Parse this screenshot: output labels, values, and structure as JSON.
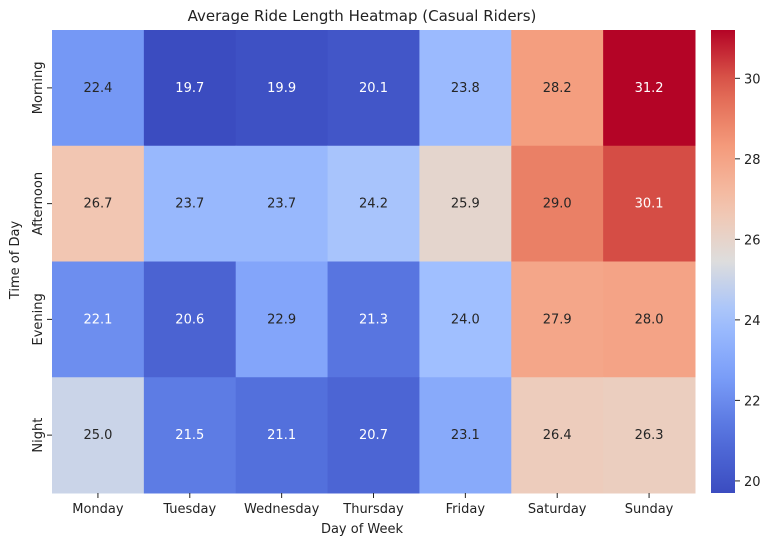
{
  "chart_data": {
    "type": "heatmap",
    "title": "Average Ride Length Heatmap (Casual Riders)",
    "xlabel": "Day of Week",
    "ylabel": "Time of Day",
    "x_categories": [
      "Monday",
      "Tuesday",
      "Wednesday",
      "Thursday",
      "Friday",
      "Saturday",
      "Sunday"
    ],
    "y_categories": [
      "Morning",
      "Afternoon",
      "Evening",
      "Night"
    ],
    "values": [
      [
        22.4,
        19.7,
        19.9,
        20.1,
        23.8,
        28.2,
        31.2
      ],
      [
        26.7,
        23.7,
        23.7,
        24.2,
        25.9,
        29.0,
        30.1
      ],
      [
        22.1,
        20.6,
        22.9,
        21.3,
        24.0,
        27.9,
        28.0
      ],
      [
        25.0,
        21.5,
        21.1,
        20.7,
        23.1,
        26.4,
        26.3
      ]
    ],
    "value_format": "0.0",
    "colormap": "coolwarm",
    "colorbar": {
      "range": [
        19.7,
        31.2
      ],
      "ticks": [
        "20",
        "22",
        "24",
        "26",
        "28",
        "30"
      ]
    }
  }
}
